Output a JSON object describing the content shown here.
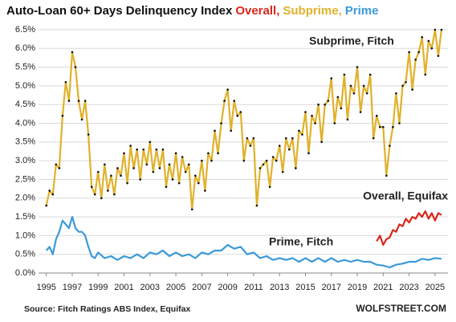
{
  "chart_data": {
    "type": "line",
    "title": [
      "Auto-Loan 60+ Days Delinquency Index",
      "Overall,",
      "Subprime,",
      "Prime"
    ],
    "title_colors": [
      "#111111",
      "#d9261c",
      "#e0b12a",
      "#3a9ad9"
    ],
    "source": "Source: Fitch Ratings ABS Index, Equifax",
    "credit": "WOLFSTREET.COM",
    "xlim": [
      1994.4,
      2026.0
    ],
    "xticks": [
      1995,
      1997,
      1999,
      2001,
      2003,
      2005,
      2007,
      2009,
      2011,
      2013,
      2015,
      2017,
      2019,
      2021,
      2023,
      2025
    ],
    "ylim": [
      0,
      6.65
    ],
    "yticks": [
      {
        "value": 0,
        "label": "0.0%"
      },
      {
        "value": 0.5,
        "label": "0.5%"
      },
      {
        "value": 1,
        "label": "1.0%"
      },
      {
        "value": 1.5,
        "label": "1.5%"
      },
      {
        "value": 2,
        "label": "2.0%"
      },
      {
        "value": 2.5,
        "label": "2.5%"
      },
      {
        "value": 3,
        "label": "3.0%"
      },
      {
        "value": 3.5,
        "label": "3.5%"
      },
      {
        "value": 4,
        "label": "4.0%"
      },
      {
        "value": 4.5,
        "label": "4.5%"
      },
      {
        "value": 5,
        "label": "5.0%"
      },
      {
        "value": 5.5,
        "label": "5.5%"
      },
      {
        "value": 6,
        "label": "6.0%"
      },
      {
        "value": 6.5,
        "label": "6.5%"
      }
    ],
    "grid": true,
    "series": [
      {
        "name": "Subprime, Fitch",
        "color": "#e0b12a",
        "dots": true,
        "x": [
          1995.0,
          1995.25,
          1995.5,
          1995.75,
          1996.0,
          1996.25,
          1996.5,
          1996.75,
          1997.0,
          1997.25,
          1997.5,
          1997.75,
          1998.0,
          1998.25,
          1998.5,
          1998.75,
          1999.0,
          1999.25,
          1999.5,
          1999.75,
          2000.0,
          2000.25,
          2000.5,
          2000.75,
          2001.0,
          2001.25,
          2001.5,
          2001.75,
          2002.0,
          2002.25,
          2002.5,
          2002.75,
          2003.0,
          2003.25,
          2003.5,
          2003.75,
          2004.0,
          2004.25,
          2004.5,
          2004.75,
          2005.0,
          2005.25,
          2005.5,
          2005.75,
          2006.0,
          2006.25,
          2006.5,
          2006.75,
          2007.0,
          2007.25,
          2007.5,
          2007.75,
          2008.0,
          2008.25,
          2008.5,
          2008.75,
          2009.0,
          2009.25,
          2009.5,
          2009.75,
          2010.0,
          2010.25,
          2010.5,
          2010.75,
          2011.0,
          2011.25,
          2011.5,
          2011.75,
          2012.0,
          2012.25,
          2012.5,
          2012.75,
          2013.0,
          2013.25,
          2013.5,
          2013.75,
          2014.0,
          2014.25,
          2014.5,
          2014.75,
          2015.0,
          2015.25,
          2015.5,
          2015.75,
          2016.0,
          2016.25,
          2016.5,
          2016.75,
          2017.0,
          2017.25,
          2017.5,
          2017.75,
          2018.0,
          2018.25,
          2018.5,
          2018.75,
          2019.0,
          2019.25,
          2019.5,
          2019.75,
          2020.0,
          2020.25,
          2020.5,
          2020.75,
          2021.0,
          2021.25,
          2021.5,
          2021.75,
          2022.0,
          2022.25,
          2022.5,
          2022.75,
          2023.0,
          2023.25,
          2023.5,
          2023.75,
          2024.0,
          2024.25,
          2024.5,
          2024.75,
          2025.0,
          2025.25,
          2025.5
        ],
        "values": [
          1.8,
          2.2,
          2.1,
          2.9,
          2.8,
          4.2,
          5.1,
          4.6,
          5.9,
          5.5,
          4.6,
          4.1,
          4.6,
          3.7,
          2.3,
          2.1,
          2.7,
          2.0,
          2.9,
          2.2,
          2.6,
          2.1,
          2.8,
          2.6,
          3.2,
          2.4,
          3.4,
          2.8,
          3.3,
          2.5,
          3.3,
          2.9,
          3.5,
          2.7,
          3.3,
          2.8,
          3.3,
          2.3,
          2.9,
          2.5,
          3.2,
          2.4,
          3.1,
          2.7,
          2.9,
          1.7,
          2.6,
          2.4,
          3.0,
          2.2,
          3.2,
          3.0,
          3.8,
          3.2,
          4.0,
          4.6,
          4.9,
          3.8,
          4.6,
          4.2,
          4.3,
          3.0,
          3.6,
          3.4,
          3.6,
          1.8,
          2.8,
          2.9,
          3.0,
          2.3,
          3.1,
          3.0,
          3.4,
          2.7,
          3.6,
          3.3,
          3.6,
          2.8,
          3.8,
          3.7,
          4.3,
          3.2,
          4.2,
          4.0,
          4.5,
          3.5,
          4.5,
          4.6,
          5.2,
          4.0,
          4.7,
          4.4,
          5.3,
          4.1,
          5.0,
          4.8,
          5.5,
          4.3,
          5.0,
          4.8,
          5.3,
          3.6,
          4.2,
          3.9,
          3.9,
          2.6,
          3.4,
          3.9,
          4.8,
          4.0,
          5.0,
          5.1,
          5.9,
          4.9,
          5.7,
          5.9,
          6.3,
          5.3,
          6.2,
          6.0,
          6.5,
          5.8,
          6.5
        ]
      },
      {
        "name": "Prime, Fitch",
        "color": "#3a9ad9",
        "dots": false,
        "x": [
          1995.0,
          1995.25,
          1995.5,
          1995.75,
          1996.0,
          1996.25,
          1996.5,
          1996.75,
          1997.0,
          1997.25,
          1997.5,
          1997.75,
          1998.0,
          1998.25,
          1998.5,
          1998.75,
          1999.0,
          1999.5,
          2000.0,
          2000.5,
          2001.0,
          2001.5,
          2002.0,
          2002.5,
          2003.0,
          2003.5,
          2004.0,
          2004.5,
          2005.0,
          2005.5,
          2006.0,
          2006.5,
          2007.0,
          2007.5,
          2008.0,
          2008.5,
          2009.0,
          2009.5,
          2010.0,
          2010.5,
          2011.0,
          2011.5,
          2012.0,
          2012.5,
          2013.0,
          2013.5,
          2014.0,
          2014.5,
          2015.0,
          2015.5,
          2016.0,
          2016.5,
          2017.0,
          2017.5,
          2018.0,
          2018.5,
          2019.0,
          2019.5,
          2020.0,
          2020.5,
          2021.0,
          2021.5,
          2022.0,
          2022.5,
          2023.0,
          2023.5,
          2024.0,
          2024.5,
          2025.0,
          2025.5
        ],
        "values": [
          0.6,
          0.7,
          0.5,
          0.9,
          1.1,
          1.4,
          1.3,
          1.2,
          1.5,
          1.2,
          1.1,
          1.1,
          1.0,
          0.7,
          0.45,
          0.4,
          0.55,
          0.4,
          0.45,
          0.35,
          0.45,
          0.4,
          0.5,
          0.4,
          0.55,
          0.5,
          0.6,
          0.45,
          0.55,
          0.45,
          0.5,
          0.4,
          0.55,
          0.5,
          0.6,
          0.6,
          0.75,
          0.65,
          0.7,
          0.5,
          0.55,
          0.4,
          0.45,
          0.35,
          0.4,
          0.35,
          0.4,
          0.3,
          0.4,
          0.3,
          0.4,
          0.3,
          0.4,
          0.3,
          0.35,
          0.3,
          0.35,
          0.3,
          0.3,
          0.22,
          0.2,
          0.15,
          0.22,
          0.25,
          0.3,
          0.3,
          0.38,
          0.35,
          0.4,
          0.38
        ]
      },
      {
        "name": "Overall, Equifax",
        "color": "#d9261c",
        "dots": false,
        "x": [
          2020.5,
          2020.75,
          2021.0,
          2021.25,
          2021.5,
          2021.75,
          2022.0,
          2022.25,
          2022.5,
          2022.75,
          2023.0,
          2023.25,
          2023.5,
          2023.75,
          2024.0,
          2024.25,
          2024.5,
          2024.75,
          2025.0,
          2025.25,
          2025.5
        ],
        "values": [
          0.85,
          1.0,
          0.75,
          0.9,
          0.95,
          1.15,
          1.1,
          1.3,
          1.25,
          1.45,
          1.35,
          1.5,
          1.45,
          1.6,
          1.5,
          1.65,
          1.45,
          1.6,
          1.4,
          1.6,
          1.55
        ]
      }
    ]
  }
}
